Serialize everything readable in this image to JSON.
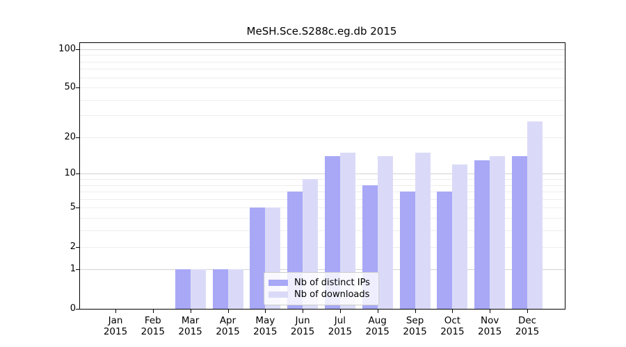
{
  "title": "MeSH.Sce.S288c.eg.db 2015",
  "chart_data": {
    "type": "bar",
    "title": "MeSH.Sce.S288c.eg.db 2015",
    "xlabel": "",
    "ylabel": "",
    "x_year_label": "2015",
    "categories": [
      "Jan",
      "Feb",
      "Mar",
      "Apr",
      "May",
      "Jun",
      "Jul",
      "Aug",
      "Sep",
      "Oct",
      "Nov",
      "Dec"
    ],
    "series": [
      {
        "name": "Nb of distinct IPs",
        "color": "#a8a8f7",
        "values": [
          0,
          0,
          1,
          1,
          5,
          7,
          14,
          8,
          7,
          7,
          13,
          14
        ]
      },
      {
        "name": "Nb of downloads",
        "color": "#dadaf8",
        "values": [
          0,
          0,
          1,
          1,
          5,
          9,
          15,
          14,
          15,
          12,
          14,
          27
        ]
      }
    ],
    "y_scale": "log1p",
    "ylim": [
      0,
      112
    ],
    "y_ticks": [
      0,
      1,
      2,
      5,
      10,
      20,
      50,
      100
    ],
    "grid_major": [
      1,
      10,
      100
    ],
    "grid_minor": [
      2,
      3,
      4,
      5,
      6,
      7,
      8,
      9,
      20,
      30,
      40,
      50,
      60,
      70,
      80,
      90
    ],
    "grid": "on",
    "legend_position": "lower center"
  },
  "colors": {
    "bar_dark": "#a8a8f7",
    "bar_light": "#dadaf8",
    "grid_major": "#d2d2d2",
    "grid_minor": "#ededed",
    "axis": "#000000",
    "legend_border": "#cccccc"
  }
}
